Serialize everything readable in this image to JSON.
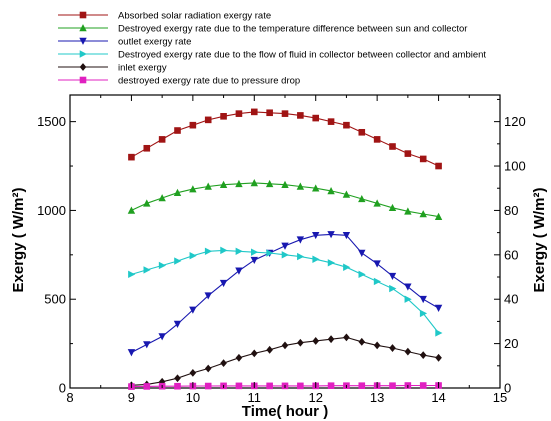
{
  "chart_data": {
    "type": "line",
    "xlabel": "Time( hour )",
    "ylabel_left": "Exergy ( W/m²)",
    "ylabel_right": "Exergy ( W/m²)",
    "xlim": [
      8,
      15
    ],
    "ylim_left": [
      0,
      1650
    ],
    "ylim_right": [
      0,
      132
    ],
    "x_ticks": [
      "8",
      "9",
      "10",
      "11",
      "12",
      "13",
      "14",
      "15"
    ],
    "y_ticks_left": [
      "0",
      "500",
      "1000",
      "1500"
    ],
    "y_ticks_right": [
      "0",
      "20",
      "40",
      "60",
      "80",
      "100",
      "120"
    ],
    "grid": false,
    "legend_position": "top",
    "x": [
      9,
      9.25,
      9.5,
      9.75,
      10,
      10.25,
      10.5,
      10.75,
      11,
      11.25,
      11.5,
      11.75,
      12,
      12.25,
      12.5,
      12.75,
      13,
      13.25,
      13.5,
      13.75,
      14
    ],
    "series": [
      {
        "name": "Absorbed solar radiation exergy rate",
        "color": "#a01414",
        "marker": "square",
        "values": [
          1300,
          1350,
          1400,
          1450,
          1480,
          1510,
          1530,
          1545,
          1555,
          1550,
          1545,
          1535,
          1520,
          1500,
          1480,
          1440,
          1400,
          1360,
          1320,
          1290,
          1250
        ]
      },
      {
        "name": "Destroyed exergy rate due to the temperature difference between sun and collector",
        "color": "#20a020",
        "marker": "triangle-up",
        "values": [
          1000,
          1040,
          1070,
          1100,
          1120,
          1135,
          1145,
          1150,
          1155,
          1150,
          1145,
          1135,
          1125,
          1110,
          1090,
          1065,
          1040,
          1015,
          995,
          980,
          965
        ]
      },
      {
        "name": "outlet exergy rate",
        "color": "#1818b0",
        "marker": "triangle-down",
        "values": [
          200,
          245,
          290,
          360,
          440,
          520,
          590,
          660,
          720,
          760,
          800,
          835,
          860,
          865,
          860,
          760,
          700,
          630,
          570,
          500,
          450
        ]
      },
      {
        "name": "Destroyed exergy rate due to the flow of fluid in collector between collector and ambient",
        "color": "#20c8c8",
        "marker": "triangle-right",
        "values": [
          640,
          665,
          690,
          715,
          745,
          770,
          775,
          770,
          765,
          760,
          750,
          740,
          725,
          705,
          680,
          640,
          600,
          560,
          500,
          420,
          310
        ]
      },
      {
        "name": "inlet exergy",
        "color": "#201010",
        "marker": "diamond",
        "values": [
          15,
          20,
          35,
          55,
          85,
          110,
          140,
          170,
          195,
          215,
          240,
          255,
          265,
          275,
          285,
          260,
          240,
          225,
          205,
          185,
          170
        ]
      },
      {
        "name": "destroyed exergy rate due to pressure drop",
        "color": "#e020c0",
        "marker": "square",
        "values": [
          8,
          9,
          10,
          10,
          11,
          11,
          12,
          12,
          12,
          12,
          12,
          12,
          12,
          13,
          13,
          13,
          13,
          13,
          14,
          14,
          14
        ]
      }
    ]
  }
}
